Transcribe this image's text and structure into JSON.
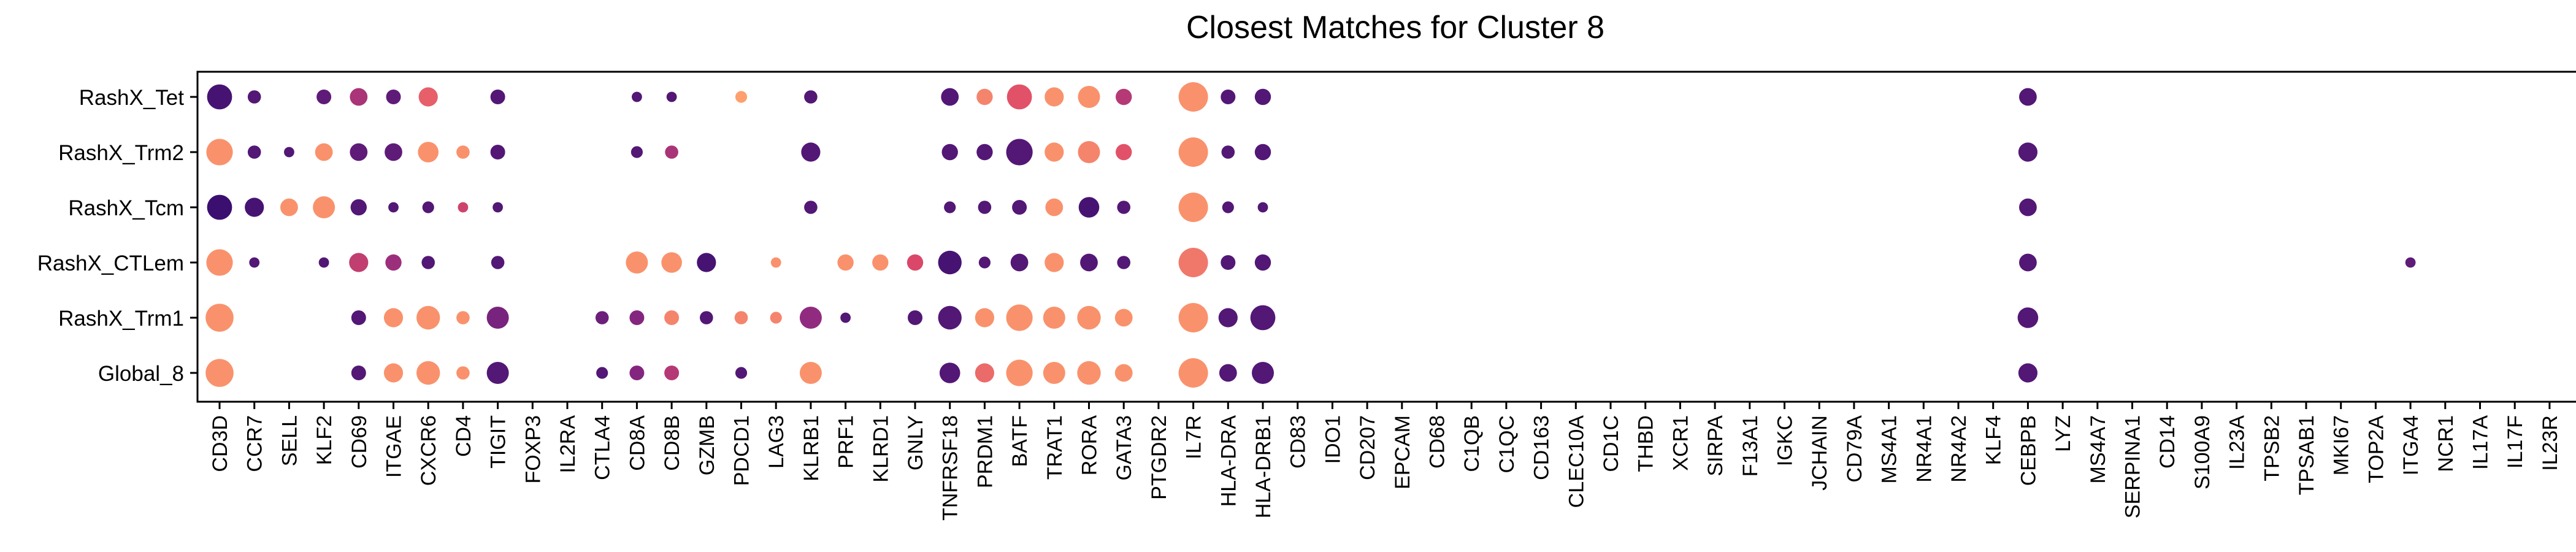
{
  "chart_data": {
    "type": "scatter",
    "title": "Closest Matches for Cluster 8",
    "xlabel": "",
    "ylabel": "",
    "grid": false,
    "legend": "none",
    "genes": [
      "CD3D",
      "CCR7",
      "SELL",
      "KLF2",
      "CD69",
      "ITGAE",
      "CXCR6",
      "CD4",
      "TIGIT",
      "FOXP3",
      "IL2RA",
      "CTLA4",
      "CD8A",
      "CD8B",
      "GZMB",
      "PDCD1",
      "LAG3",
      "KLRB1",
      "PRF1",
      "KLRD1",
      "GNLY",
      "TNFRSF18",
      "PRDM1",
      "BATF",
      "TRAT1",
      "RORA",
      "GATA3",
      "PTGDR2",
      "IL7R",
      "HLA-DRA",
      "HLA-DRB1",
      "CD83",
      "IDO1",
      "CD207",
      "EPCAM",
      "CD68",
      "C1QB",
      "C1QC",
      "CD163",
      "CLEC10A",
      "CD1C",
      "THBD",
      "XCR1",
      "SIRPA",
      "F13A1",
      "IGKC",
      "JCHAIN",
      "CD79A",
      "MS4A1",
      "NR4A1",
      "NR4A2",
      "KLF4",
      "CEBPB",
      "LYZ",
      "MS4A7",
      "SERPINA1",
      "CD14",
      "S100A9",
      "IL23A",
      "TPSB2",
      "TPSAB1",
      "MKI67",
      "TOP2A",
      "ITGA4",
      "NCR1",
      "IL17A",
      "IL17F",
      "IL23R"
    ],
    "rows": [
      "RashX_Tet",
      "RashX_Trm2",
      "RashX_Tcm",
      "RashX_CTLem",
      "RashX_Trm1",
      "Global_8"
    ],
    "color_scale": [
      "#3b0f70",
      "#8c2981",
      "#de4968",
      "#fe9f6d"
    ],
    "points": [
      {
        "row": "RashX_Tet",
        "gene": "CD3D",
        "size": 0.85,
        "color": 0.05
      },
      {
        "row": "RashX_Tet",
        "gene": "CCR7",
        "size": 0.45,
        "color": 0.1
      },
      {
        "row": "RashX_Tet",
        "gene": "KLF2",
        "size": 0.5,
        "color": 0.15
      },
      {
        "row": "RashX_Tet",
        "gene": "CD69",
        "size": 0.6,
        "color": 0.45
      },
      {
        "row": "RashX_Tet",
        "gene": "ITGAE",
        "size": 0.5,
        "color": 0.15
      },
      {
        "row": "RashX_Tet",
        "gene": "CXCR6",
        "size": 0.65,
        "color": 0.75
      },
      {
        "row": "RashX_Tet",
        "gene": "TIGIT",
        "size": 0.5,
        "color": 0.1
      },
      {
        "row": "RashX_Tet",
        "gene": "CD8A",
        "size": 0.35,
        "color": 0.1
      },
      {
        "row": "RashX_Tet",
        "gene": "CD8B",
        "size": 0.35,
        "color": 0.1
      },
      {
        "row": "RashX_Tet",
        "gene": "PDCD1",
        "size": 0.4,
        "color": 1.0
      },
      {
        "row": "RashX_Tet",
        "gene": "KLRB1",
        "size": 0.45,
        "color": 0.1
      },
      {
        "row": "RashX_Tet",
        "gene": "TNFRSF18",
        "size": 0.6,
        "color": 0.1
      },
      {
        "row": "RashX_Tet",
        "gene": "PRDM1",
        "size": 0.55,
        "color": 0.9
      },
      {
        "row": "RashX_Tet",
        "gene": "BATF",
        "size": 0.85,
        "color": 0.7
      },
      {
        "row": "RashX_Tet",
        "gene": "TRAT1",
        "size": 0.65,
        "color": 0.95
      },
      {
        "row": "RashX_Tet",
        "gene": "RORA",
        "size": 0.75,
        "color": 0.95
      },
      {
        "row": "RashX_Tet",
        "gene": "GATA3",
        "size": 0.55,
        "color": 0.5
      },
      {
        "row": "RashX_Tet",
        "gene": "IL7R",
        "size": 1.0,
        "color": 0.95
      },
      {
        "row": "RashX_Tet",
        "gene": "HLA-DRA",
        "size": 0.5,
        "color": 0.1
      },
      {
        "row": "RashX_Tet",
        "gene": "HLA-DRB1",
        "size": 0.55,
        "color": 0.1
      },
      {
        "row": "RashX_Tet",
        "gene": "CEBPB",
        "size": 0.6,
        "color": 0.1
      },
      {
        "row": "RashX_Trm2",
        "gene": "CD3D",
        "size": 0.9,
        "color": 0.95
      },
      {
        "row": "RashX_Trm2",
        "gene": "CCR7",
        "size": 0.45,
        "color": 0.1
      },
      {
        "row": "RashX_Trm2",
        "gene": "SELL",
        "size": 0.35,
        "color": 0.1
      },
      {
        "row": "RashX_Trm2",
        "gene": "KLF2",
        "size": 0.6,
        "color": 0.95
      },
      {
        "row": "RashX_Trm2",
        "gene": "CD69",
        "size": 0.6,
        "color": 0.15
      },
      {
        "row": "RashX_Trm2",
        "gene": "ITGAE",
        "size": 0.6,
        "color": 0.15
      },
      {
        "row": "RashX_Trm2",
        "gene": "CXCR6",
        "size": 0.7,
        "color": 0.95
      },
      {
        "row": "RashX_Trm2",
        "gene": "CD4",
        "size": 0.45,
        "color": 0.95
      },
      {
        "row": "RashX_Trm2",
        "gene": "TIGIT",
        "size": 0.5,
        "color": 0.1
      },
      {
        "row": "RashX_Trm2",
        "gene": "CD8A",
        "size": 0.4,
        "color": 0.1
      },
      {
        "row": "RashX_Trm2",
        "gene": "CD8B",
        "size": 0.45,
        "color": 0.45
      },
      {
        "row": "RashX_Trm2",
        "gene": "KLRB1",
        "size": 0.65,
        "color": 0.1
      },
      {
        "row": "RashX_Trm2",
        "gene": "TNFRSF18",
        "size": 0.55,
        "color": 0.1
      },
      {
        "row": "RashX_Trm2",
        "gene": "PRDM1",
        "size": 0.55,
        "color": 0.1
      },
      {
        "row": "RashX_Trm2",
        "gene": "BATF",
        "size": 0.9,
        "color": 0.1
      },
      {
        "row": "RashX_Trm2",
        "gene": "TRAT1",
        "size": 0.65,
        "color": 0.95
      },
      {
        "row": "RashX_Trm2",
        "gene": "RORA",
        "size": 0.75,
        "color": 0.9
      },
      {
        "row": "RashX_Trm2",
        "gene": "GATA3",
        "size": 0.55,
        "color": 0.7
      },
      {
        "row": "RashX_Trm2",
        "gene": "IL7R",
        "size": 1.0,
        "color": 0.95
      },
      {
        "row": "RashX_Trm2",
        "gene": "HLA-DRA",
        "size": 0.45,
        "color": 0.1
      },
      {
        "row": "RashX_Trm2",
        "gene": "HLA-DRB1",
        "size": 0.55,
        "color": 0.1
      },
      {
        "row": "RashX_Trm2",
        "gene": "CEBPB",
        "size": 0.65,
        "color": 0.1
      },
      {
        "row": "RashX_Tcm",
        "gene": "CD3D",
        "size": 0.85,
        "color": 0.0
      },
      {
        "row": "RashX_Tcm",
        "gene": "CCR7",
        "size": 0.65,
        "color": 0.05
      },
      {
        "row": "RashX_Tcm",
        "gene": "SELL",
        "size": 0.6,
        "color": 0.95
      },
      {
        "row": "RashX_Tcm",
        "gene": "KLF2",
        "size": 0.75,
        "color": 0.95
      },
      {
        "row": "RashX_Tcm",
        "gene": "CD69",
        "size": 0.55,
        "color": 0.1
      },
      {
        "row": "RashX_Tcm",
        "gene": "ITGAE",
        "size": 0.35,
        "color": 0.1
      },
      {
        "row": "RashX_Tcm",
        "gene": "CXCR6",
        "size": 0.4,
        "color": 0.1
      },
      {
        "row": "RashX_Tcm",
        "gene": "CD4",
        "size": 0.35,
        "color": 0.6
      },
      {
        "row": "RashX_Tcm",
        "gene": "TIGIT",
        "size": 0.35,
        "color": 0.1
      },
      {
        "row": "RashX_Tcm",
        "gene": "KLRB1",
        "size": 0.45,
        "color": 0.1
      },
      {
        "row": "RashX_Tcm",
        "gene": "TNFRSF18",
        "size": 0.4,
        "color": 0.1
      },
      {
        "row": "RashX_Tcm",
        "gene": "PRDM1",
        "size": 0.45,
        "color": 0.1
      },
      {
        "row": "RashX_Tcm",
        "gene": "BATF",
        "size": 0.5,
        "color": 0.1
      },
      {
        "row": "RashX_Tcm",
        "gene": "TRAT1",
        "size": 0.6,
        "color": 0.95
      },
      {
        "row": "RashX_Tcm",
        "gene": "RORA",
        "size": 0.7,
        "color": 0.05
      },
      {
        "row": "RashX_Tcm",
        "gene": "GATA3",
        "size": 0.45,
        "color": 0.1
      },
      {
        "row": "RashX_Tcm",
        "gene": "IL7R",
        "size": 1.0,
        "color": 0.95
      },
      {
        "row": "RashX_Tcm",
        "gene": "HLA-DRA",
        "size": 0.4,
        "color": 0.1
      },
      {
        "row": "RashX_Tcm",
        "gene": "HLA-DRB1",
        "size": 0.35,
        "color": 0.1
      },
      {
        "row": "RashX_Tcm",
        "gene": "CEBPB",
        "size": 0.6,
        "color": 0.1
      },
      {
        "row": "RashX_CTLem",
        "gene": "CD3D",
        "size": 0.9,
        "color": 0.95
      },
      {
        "row": "RashX_CTLem",
        "gene": "CCR7",
        "size": 0.35,
        "color": 0.1
      },
      {
        "row": "RashX_CTLem",
        "gene": "KLF2",
        "size": 0.35,
        "color": 0.1
      },
      {
        "row": "RashX_CTLem",
        "gene": "CD69",
        "size": 0.65,
        "color": 0.55
      },
      {
        "row": "RashX_CTLem",
        "gene": "ITGAE",
        "size": 0.55,
        "color": 0.4
      },
      {
        "row": "RashX_CTLem",
        "gene": "CXCR6",
        "size": 0.45,
        "color": 0.1
      },
      {
        "row": "RashX_CTLem",
        "gene": "TIGIT",
        "size": 0.45,
        "color": 0.1
      },
      {
        "row": "RashX_CTLem",
        "gene": "CD8A",
        "size": 0.75,
        "color": 0.95
      },
      {
        "row": "RashX_CTLem",
        "gene": "CD8B",
        "size": 0.7,
        "color": 0.95
      },
      {
        "row": "RashX_CTLem",
        "gene": "GZMB",
        "size": 0.65,
        "color": 0.05
      },
      {
        "row": "RashX_CTLem",
        "gene": "LAG3",
        "size": 0.35,
        "color": 0.95
      },
      {
        "row": "RashX_CTLem",
        "gene": "PRF1",
        "size": 0.55,
        "color": 0.95
      },
      {
        "row": "RashX_CTLem",
        "gene": "KLRD1",
        "size": 0.55,
        "color": 0.95
      },
      {
        "row": "RashX_CTLem",
        "gene": "GNLY",
        "size": 0.55,
        "color": 0.65
      },
      {
        "row": "RashX_CTLem",
        "gene": "TNFRSF18",
        "size": 0.8,
        "color": 0.05
      },
      {
        "row": "RashX_CTLem",
        "gene": "PRDM1",
        "size": 0.4,
        "color": 0.1
      },
      {
        "row": "RashX_CTLem",
        "gene": "BATF",
        "size": 0.6,
        "color": 0.1
      },
      {
        "row": "RashX_CTLem",
        "gene": "TRAT1",
        "size": 0.65,
        "color": 0.95
      },
      {
        "row": "RashX_CTLem",
        "gene": "RORA",
        "size": 0.6,
        "color": 0.1
      },
      {
        "row": "RashX_CTLem",
        "gene": "GATA3",
        "size": 0.45,
        "color": 0.1
      },
      {
        "row": "RashX_CTLem",
        "gene": "IL7R",
        "size": 1.0,
        "color": 0.85
      },
      {
        "row": "RashX_CTLem",
        "gene": "HLA-DRA",
        "size": 0.5,
        "color": 0.1
      },
      {
        "row": "RashX_CTLem",
        "gene": "HLA-DRB1",
        "size": 0.55,
        "color": 0.1
      },
      {
        "row": "RashX_CTLem",
        "gene": "CEBPB",
        "size": 0.6,
        "color": 0.1
      },
      {
        "row": "RashX_CTLem",
        "gene": "ITGA4",
        "size": 0.35,
        "color": 0.15
      },
      {
        "row": "RashX_Trm1",
        "gene": "CD3D",
        "size": 0.95,
        "color": 0.95
      },
      {
        "row": "RashX_Trm1",
        "gene": "CD69",
        "size": 0.5,
        "color": 0.1
      },
      {
        "row": "RashX_Trm1",
        "gene": "ITGAE",
        "size": 0.65,
        "color": 0.95
      },
      {
        "row": "RashX_Trm1",
        "gene": "CXCR6",
        "size": 0.8,
        "color": 0.95
      },
      {
        "row": "RashX_Trm1",
        "gene": "CD4",
        "size": 0.45,
        "color": 0.95
      },
      {
        "row": "RashX_Trm1",
        "gene": "TIGIT",
        "size": 0.75,
        "color": 0.25
      },
      {
        "row": "RashX_Trm1",
        "gene": "CTLA4",
        "size": 0.45,
        "color": 0.2
      },
      {
        "row": "RashX_Trm1",
        "gene": "CD8A",
        "size": 0.5,
        "color": 0.3
      },
      {
        "row": "RashX_Trm1",
        "gene": "CD8B",
        "size": 0.5,
        "color": 0.9
      },
      {
        "row": "RashX_Trm1",
        "gene": "GZMB",
        "size": 0.45,
        "color": 0.1
      },
      {
        "row": "RashX_Trm1",
        "gene": "PDCD1",
        "size": 0.45,
        "color": 0.9
      },
      {
        "row": "RashX_Trm1",
        "gene": "LAG3",
        "size": 0.4,
        "color": 0.9
      },
      {
        "row": "RashX_Trm1",
        "gene": "KLRB1",
        "size": 0.75,
        "color": 0.35
      },
      {
        "row": "RashX_Trm1",
        "gene": "PRF1",
        "size": 0.35,
        "color": 0.1
      },
      {
        "row": "RashX_Trm1",
        "gene": "GNLY",
        "size": 0.5,
        "color": 0.1
      },
      {
        "row": "RashX_Trm1",
        "gene": "TNFRSF18",
        "size": 0.8,
        "color": 0.1
      },
      {
        "row": "RashX_Trm1",
        "gene": "PRDM1",
        "size": 0.65,
        "color": 0.95
      },
      {
        "row": "RashX_Trm1",
        "gene": "BATF",
        "size": 0.9,
        "color": 0.95
      },
      {
        "row": "RashX_Trm1",
        "gene": "TRAT1",
        "size": 0.75,
        "color": 0.95
      },
      {
        "row": "RashX_Trm1",
        "gene": "RORA",
        "size": 0.8,
        "color": 0.95
      },
      {
        "row": "RashX_Trm1",
        "gene": "GATA3",
        "size": 0.6,
        "color": 0.95
      },
      {
        "row": "RashX_Trm1",
        "gene": "IL7R",
        "size": 1.0,
        "color": 0.95
      },
      {
        "row": "RashX_Trm1",
        "gene": "HLA-DRA",
        "size": 0.65,
        "color": 0.1
      },
      {
        "row": "RashX_Trm1",
        "gene": "HLA-DRB1",
        "size": 0.85,
        "color": 0.1
      },
      {
        "row": "RashX_Trm1",
        "gene": "CEBPB",
        "size": 0.7,
        "color": 0.1
      },
      {
        "row": "Global_8",
        "gene": "CD3D",
        "size": 0.95,
        "color": 0.95
      },
      {
        "row": "Global_8",
        "gene": "CD69",
        "size": 0.5,
        "color": 0.1
      },
      {
        "row": "Global_8",
        "gene": "ITGAE",
        "size": 0.65,
        "color": 0.95
      },
      {
        "row": "Global_8",
        "gene": "CXCR6",
        "size": 0.8,
        "color": 0.95
      },
      {
        "row": "Global_8",
        "gene": "CD4",
        "size": 0.45,
        "color": 0.95
      },
      {
        "row": "Global_8",
        "gene": "TIGIT",
        "size": 0.75,
        "color": 0.1
      },
      {
        "row": "Global_8",
        "gene": "CTLA4",
        "size": 0.4,
        "color": 0.1
      },
      {
        "row": "Global_8",
        "gene": "CD8A",
        "size": 0.5,
        "color": 0.3
      },
      {
        "row": "Global_8",
        "gene": "CD8B",
        "size": 0.5,
        "color": 0.5
      },
      {
        "row": "Global_8",
        "gene": "PDCD1",
        "size": 0.4,
        "color": 0.1
      },
      {
        "row": "Global_8",
        "gene": "KLRB1",
        "size": 0.75,
        "color": 0.95
      },
      {
        "row": "Global_8",
        "gene": "TNFRSF18",
        "size": 0.7,
        "color": 0.1
      },
      {
        "row": "Global_8",
        "gene": "PRDM1",
        "size": 0.65,
        "color": 0.8
      },
      {
        "row": "Global_8",
        "gene": "BATF",
        "size": 0.9,
        "color": 0.95
      },
      {
        "row": "Global_8",
        "gene": "TRAT1",
        "size": 0.75,
        "color": 0.95
      },
      {
        "row": "Global_8",
        "gene": "RORA",
        "size": 0.8,
        "color": 0.95
      },
      {
        "row": "Global_8",
        "gene": "GATA3",
        "size": 0.6,
        "color": 0.95
      },
      {
        "row": "Global_8",
        "gene": "IL7R",
        "size": 1.0,
        "color": 0.95
      },
      {
        "row": "Global_8",
        "gene": "HLA-DRA",
        "size": 0.6,
        "color": 0.1
      },
      {
        "row": "Global_8",
        "gene": "HLA-DRB1",
        "size": 0.75,
        "color": 0.1
      },
      {
        "row": "Global_8",
        "gene": "CEBPB",
        "size": 0.65,
        "color": 0.1
      }
    ]
  }
}
